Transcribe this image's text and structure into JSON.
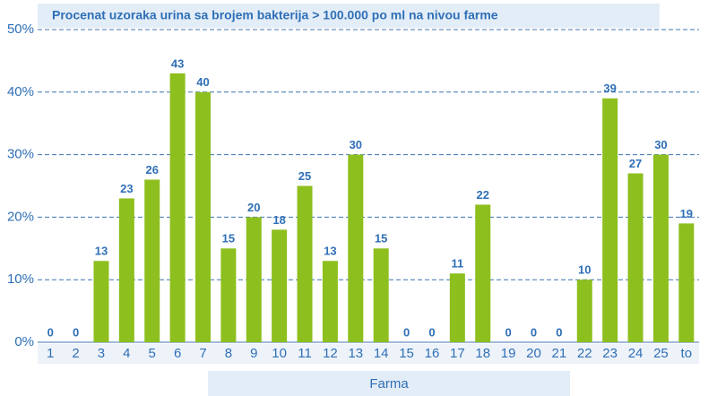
{
  "chart_data": {
    "type": "bar",
    "title": "Procenat uzoraka urina sa brojem bakterija > 100.000 po ml na nivou farme",
    "x_label": "Farma",
    "categories": [
      "1",
      "2",
      "3",
      "4",
      "5",
      "6",
      "7",
      "8",
      "9",
      "10",
      "11",
      "12",
      "13",
      "14",
      "15",
      "16",
      "17",
      "18",
      "19",
      "20",
      "21",
      "22",
      "23",
      "24",
      "25",
      "to"
    ],
    "values": [
      0,
      0,
      13,
      23,
      26,
      43,
      40,
      15,
      20,
      18,
      25,
      13,
      30,
      15,
      0,
      0,
      11,
      22,
      0,
      0,
      0,
      10,
      39,
      27,
      30,
      19
    ],
    "color": "#8dbf1e",
    "ylim": [
      0,
      50
    ],
    "yticks": [
      {
        "value": 0,
        "label": "0%"
      },
      {
        "value": 10,
        "label": "10%"
      },
      {
        "value": 20,
        "label": "20%"
      },
      {
        "value": 30,
        "label": "30%"
      },
      {
        "value": 40,
        "label": "40%"
      },
      {
        "value": 50,
        "label": "50%"
      }
    ],
    "grid": true
  }
}
